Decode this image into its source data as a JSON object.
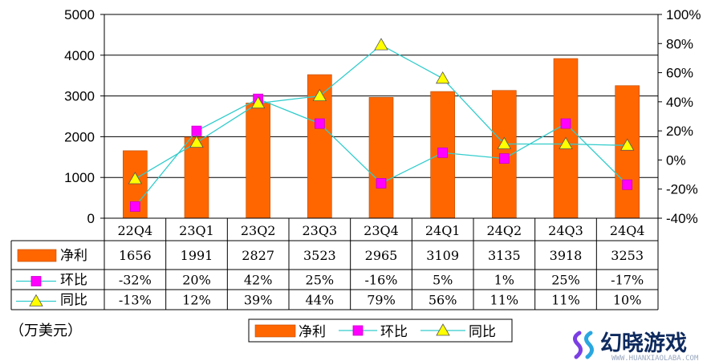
{
  "chart_data": {
    "type": "bar",
    "categories": [
      "22Q4",
      "23Q1",
      "23Q2",
      "23Q3",
      "23Q4",
      "24Q1",
      "24Q2",
      "24Q3",
      "24Q4"
    ],
    "series": [
      {
        "name": "净利",
        "type": "bar",
        "axis": "left",
        "color": "#ff6600",
        "values": [
          1656,
          1991,
          2827,
          3523,
          2965,
          3109,
          3135,
          3918,
          3253
        ]
      },
      {
        "name": "环比",
        "type": "line",
        "axis": "right",
        "color": "#33cccc",
        "marker": "square",
        "marker_color": "#ff00ff",
        "values": [
          -32,
          20,
          42,
          25,
          -16,
          5,
          1,
          25,
          -17
        ]
      },
      {
        "name": "同比",
        "type": "line",
        "axis": "right",
        "color": "#33cccc",
        "marker": "triangle",
        "marker_color": "#ffff00",
        "values": [
          -13,
          12,
          39,
          44,
          79,
          56,
          11,
          11,
          10
        ]
      }
    ],
    "table": {
      "净利": [
        "1656",
        "1991",
        "2827",
        "3523",
        "2965",
        "3109",
        "3135",
        "3918",
        "3253"
      ],
      "环比": [
        "-32%",
        "20%",
        "42%",
        "25%",
        "-16%",
        "5%",
        "1%",
        "25%",
        "-17%"
      ],
      "同比": [
        "-13%",
        "12%",
        "39%",
        "44%",
        "79%",
        "56%",
        "11%",
        "11%",
        "10%"
      ]
    },
    "left_axis": {
      "ylim": [
        0,
        5000
      ],
      "ticks": [
        "0",
        "1000",
        "2000",
        "3000",
        "4000",
        "5000"
      ]
    },
    "right_axis": {
      "ylim": [
        -40,
        100
      ],
      "ticks": [
        "-40%",
        "-20%",
        "0%",
        "20%",
        "40%",
        "60%",
        "80%",
        "100%"
      ]
    },
    "unit_label": "（万美元）",
    "grid": true,
    "legend": {
      "placement": "bottom-center",
      "items": [
        "净利",
        "环比",
        "同比"
      ]
    }
  },
  "watermark": {
    "text": "幻晓游戏",
    "subtext": "WWW.HUANXIAOLABA.COM",
    "logo_colors": [
      "#7b3fe4",
      "#2aa7e0"
    ]
  }
}
